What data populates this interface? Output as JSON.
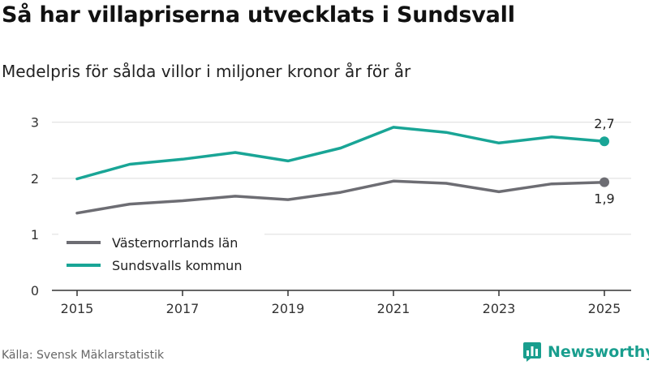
{
  "header": {
    "title": "Så har villapriserna utvecklats i Sundsvall",
    "subtitle": "Medelpris för sålda villor i miljoner kronor år för år"
  },
  "footer": {
    "source": "Källa: Svensk Mäklarstatistik",
    "brand": "Newsworthy",
    "brand_icon": "bar-chart-icon",
    "brand_color": "#199e8e"
  },
  "chart_data": {
    "type": "line",
    "title": "Så har villapriserna utvecklats i Sundsvall",
    "subtitle": "Medelpris för sålda villor i miljoner kronor år för år",
    "xlabel": "",
    "ylabel": "",
    "x": [
      2015,
      2016,
      2017,
      2018,
      2019,
      2020,
      2021,
      2022,
      2023,
      2024,
      2025
    ],
    "xticks": [
      "2015",
      "2017",
      "2019",
      "2021",
      "2023",
      "2025"
    ],
    "ylim": [
      0,
      3.3
    ],
    "yticks": [
      "0",
      "1",
      "2",
      "3"
    ],
    "grid": true,
    "legend_position": "bottom-left",
    "series": [
      {
        "name": "Västernorrlands län",
        "color": "#6d6d73",
        "values": [
          1.38,
          1.54,
          1.6,
          1.68,
          1.62,
          1.75,
          1.95,
          1.91,
          1.76,
          1.9,
          1.93
        ],
        "end_label": "1,9",
        "end_label_side": "below"
      },
      {
        "name": "Sundsvalls kommun",
        "color": "#19a596",
        "values": [
          1.99,
          2.25,
          2.34,
          2.46,
          2.31,
          2.54,
          2.91,
          2.82,
          2.63,
          2.74,
          2.66
        ],
        "end_label": "2,7",
        "end_label_side": "above"
      }
    ]
  }
}
